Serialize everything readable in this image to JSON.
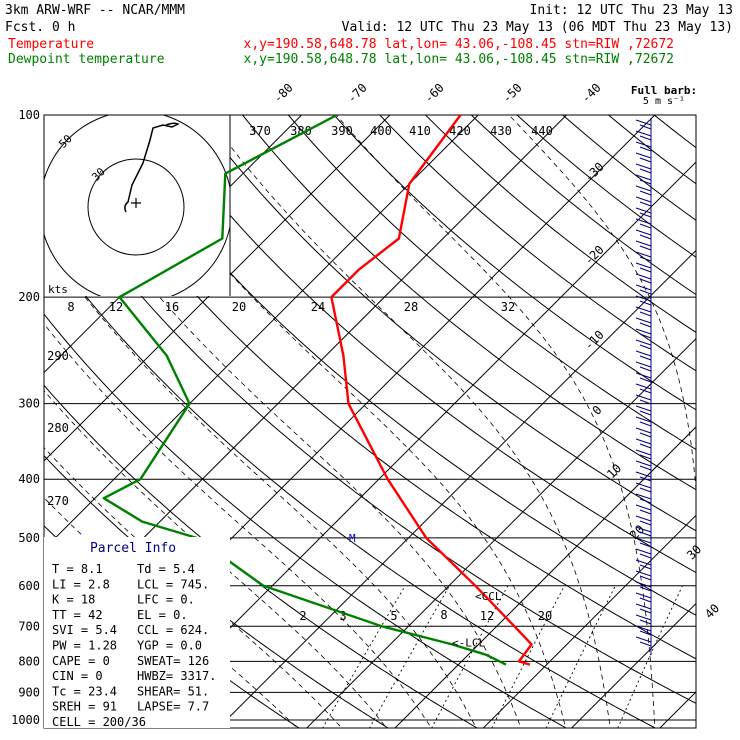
{
  "header": {
    "model": "3km ARW-WRF -- NCAR/MMM",
    "init": "Init: 12 UTC Thu 23 May 13",
    "fcst": "Fcst.     0 h",
    "valid": "Valid: 12 UTC Thu 23 May 13 (06 MDT Thu 23 May 13)",
    "lines": [
      {
        "name": "Temperature",
        "info": "x,y=190.58,648.78   lat,lon= 43.06,-108.45  stn=RIW ,72672",
        "color": "#ff0000"
      },
      {
        "name": "Dewpoint temperature",
        "info": "x,y=190.58,648.78   lat,lon= 43.06,-108.45  stn=RIW ,72672",
        "color": "#008000"
      }
    ]
  },
  "barb_legend": {
    "title": "Full barb:",
    "unit": "5 m s⁻¹"
  },
  "hodograph": {
    "units": "kts",
    "ring_labels": [
      "50",
      "30"
    ]
  },
  "chart_data": {
    "type": "skew-t",
    "pressure_levels": [
      100,
      200,
      300,
      400,
      500,
      600,
      700,
      800,
      900,
      1000
    ],
    "pressure_labels": [
      "100",
      "200",
      "300",
      "400",
      "500",
      "600",
      "700",
      "800",
      "900",
      "1000"
    ],
    "ylim": [
      1000,
      100
    ],
    "isotherm_labels": [
      "-80",
      "-70",
      "-60",
      "-50",
      "-40",
      "-30",
      "-20",
      "-10",
      "0",
      "10",
      "20",
      "30",
      "40"
    ],
    "theta_e_labels": [
      "370",
      "380",
      "390",
      "400",
      "410",
      "420",
      "430",
      "440"
    ],
    "mixing_ratio_labels_top": [
      "8",
      "12",
      "16",
      "20",
      "24",
      "28",
      "32"
    ],
    "mixing_ratio_labels_bottom": [
      "2",
      "3",
      "5",
      "8",
      "12",
      "20"
    ],
    "theta_labels": [
      "290",
      "280",
      "270"
    ],
    "series": [
      {
        "name": "Temperature",
        "color": "#ff0000",
        "points": [
          {
            "p": 100,
            "t": -62
          },
          {
            "p": 130,
            "t": -60
          },
          {
            "p": 160,
            "t": -55
          },
          {
            "p": 180,
            "t": -56
          },
          {
            "p": 200,
            "t": -56
          },
          {
            "p": 250,
            "t": -48
          },
          {
            "p": 300,
            "t": -42
          },
          {
            "p": 400,
            "t": -29
          },
          {
            "p": 500,
            "t": -18
          },
          {
            "p": 600,
            "t": -7
          },
          {
            "p": 700,
            "t": 2
          },
          {
            "p": 750,
            "t": 6
          },
          {
            "p": 800,
            "t": 6.5
          },
          {
            "p": 810,
            "t": 8.1
          }
        ]
      },
      {
        "name": "Dewpoint temperature",
        "color": "#008000",
        "points": [
          {
            "p": 100,
            "t": -76
          },
          {
            "p": 125,
            "t": -82
          },
          {
            "p": 160,
            "t": -75
          },
          {
            "p": 200,
            "t": -80
          },
          {
            "p": 250,
            "t": -68
          },
          {
            "p": 300,
            "t": -60
          },
          {
            "p": 400,
            "t": -57
          },
          {
            "p": 430,
            "t": -59
          },
          {
            "p": 470,
            "t": -52
          },
          {
            "p": 500,
            "t": -44
          },
          {
            "p": 600,
            "t": -31
          },
          {
            "p": 700,
            "t": -13
          },
          {
            "p": 750,
            "t": -3
          },
          {
            "p": 780,
            "t": 2
          },
          {
            "p": 810,
            "t": 5.4
          }
        ]
      }
    ],
    "markers": [
      {
        "label": "<CCL",
        "p": 624
      },
      {
        "label": "<-LCL",
        "p": 745
      },
      {
        "label": "M",
        "p": 500
      }
    ]
  },
  "parcel_info": {
    "title": "Parcel Info",
    "rows": [
      [
        "T  =    8.1",
        "Td =   5.4"
      ],
      [
        "LI =    2.8",
        "LCL =  745."
      ],
      [
        "K  =     18",
        "LFC =    0."
      ],
      [
        "TT =     42",
        "EL  =    0."
      ],
      [
        "SVI =   5.4",
        "CCL =  624."
      ],
      [
        "PW =   1.28",
        "YGP =   0.0"
      ],
      [
        "CAPE =    0",
        "SWEAT=  126"
      ],
      [
        "CIN  =    0",
        "HWBZ= 3317."
      ],
      [
        "Tc  =  23.4",
        "SHEAR=  51."
      ],
      [
        "SREH =   91",
        "LAPSE=  7.7"
      ],
      [
        "CELL = 200/36",
        ""
      ]
    ]
  }
}
